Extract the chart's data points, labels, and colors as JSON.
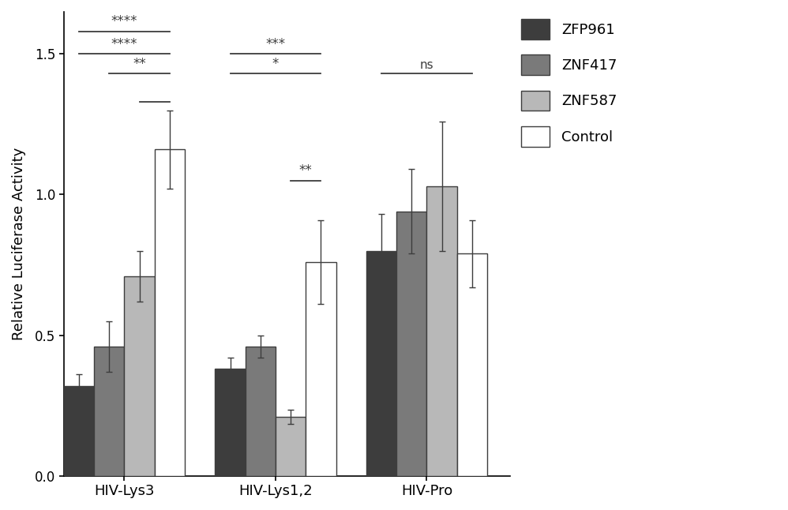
{
  "groups": [
    "HIV-Lys3",
    "HIV-Lys1,2",
    "HIV-Pro"
  ],
  "series": [
    "ZFP961",
    "ZNF417",
    "ZNF587",
    "Control"
  ],
  "colors": [
    "#3d3d3d",
    "#7a7a7a",
    "#b8b8b8",
    "#ffffff"
  ],
  "edge_color": "#3d3d3d",
  "bar_width": 0.2,
  "values": [
    [
      0.32,
      0.46,
      0.71,
      1.16
    ],
    [
      0.38,
      0.46,
      0.21,
      0.76
    ],
    [
      0.8,
      0.94,
      1.03,
      0.79
    ]
  ],
  "errors": [
    [
      0.04,
      0.09,
      0.09,
      0.14
    ],
    [
      0.04,
      0.04,
      0.025,
      0.15
    ],
    [
      0.13,
      0.15,
      0.23,
      0.12
    ]
  ],
  "ylabel": "Relative Luciferase Activity",
  "ylim": [
    0.0,
    1.65
  ],
  "yticks": [
    0.0,
    0.5,
    1.0,
    1.5
  ],
  "background_color": "#ffffff"
}
